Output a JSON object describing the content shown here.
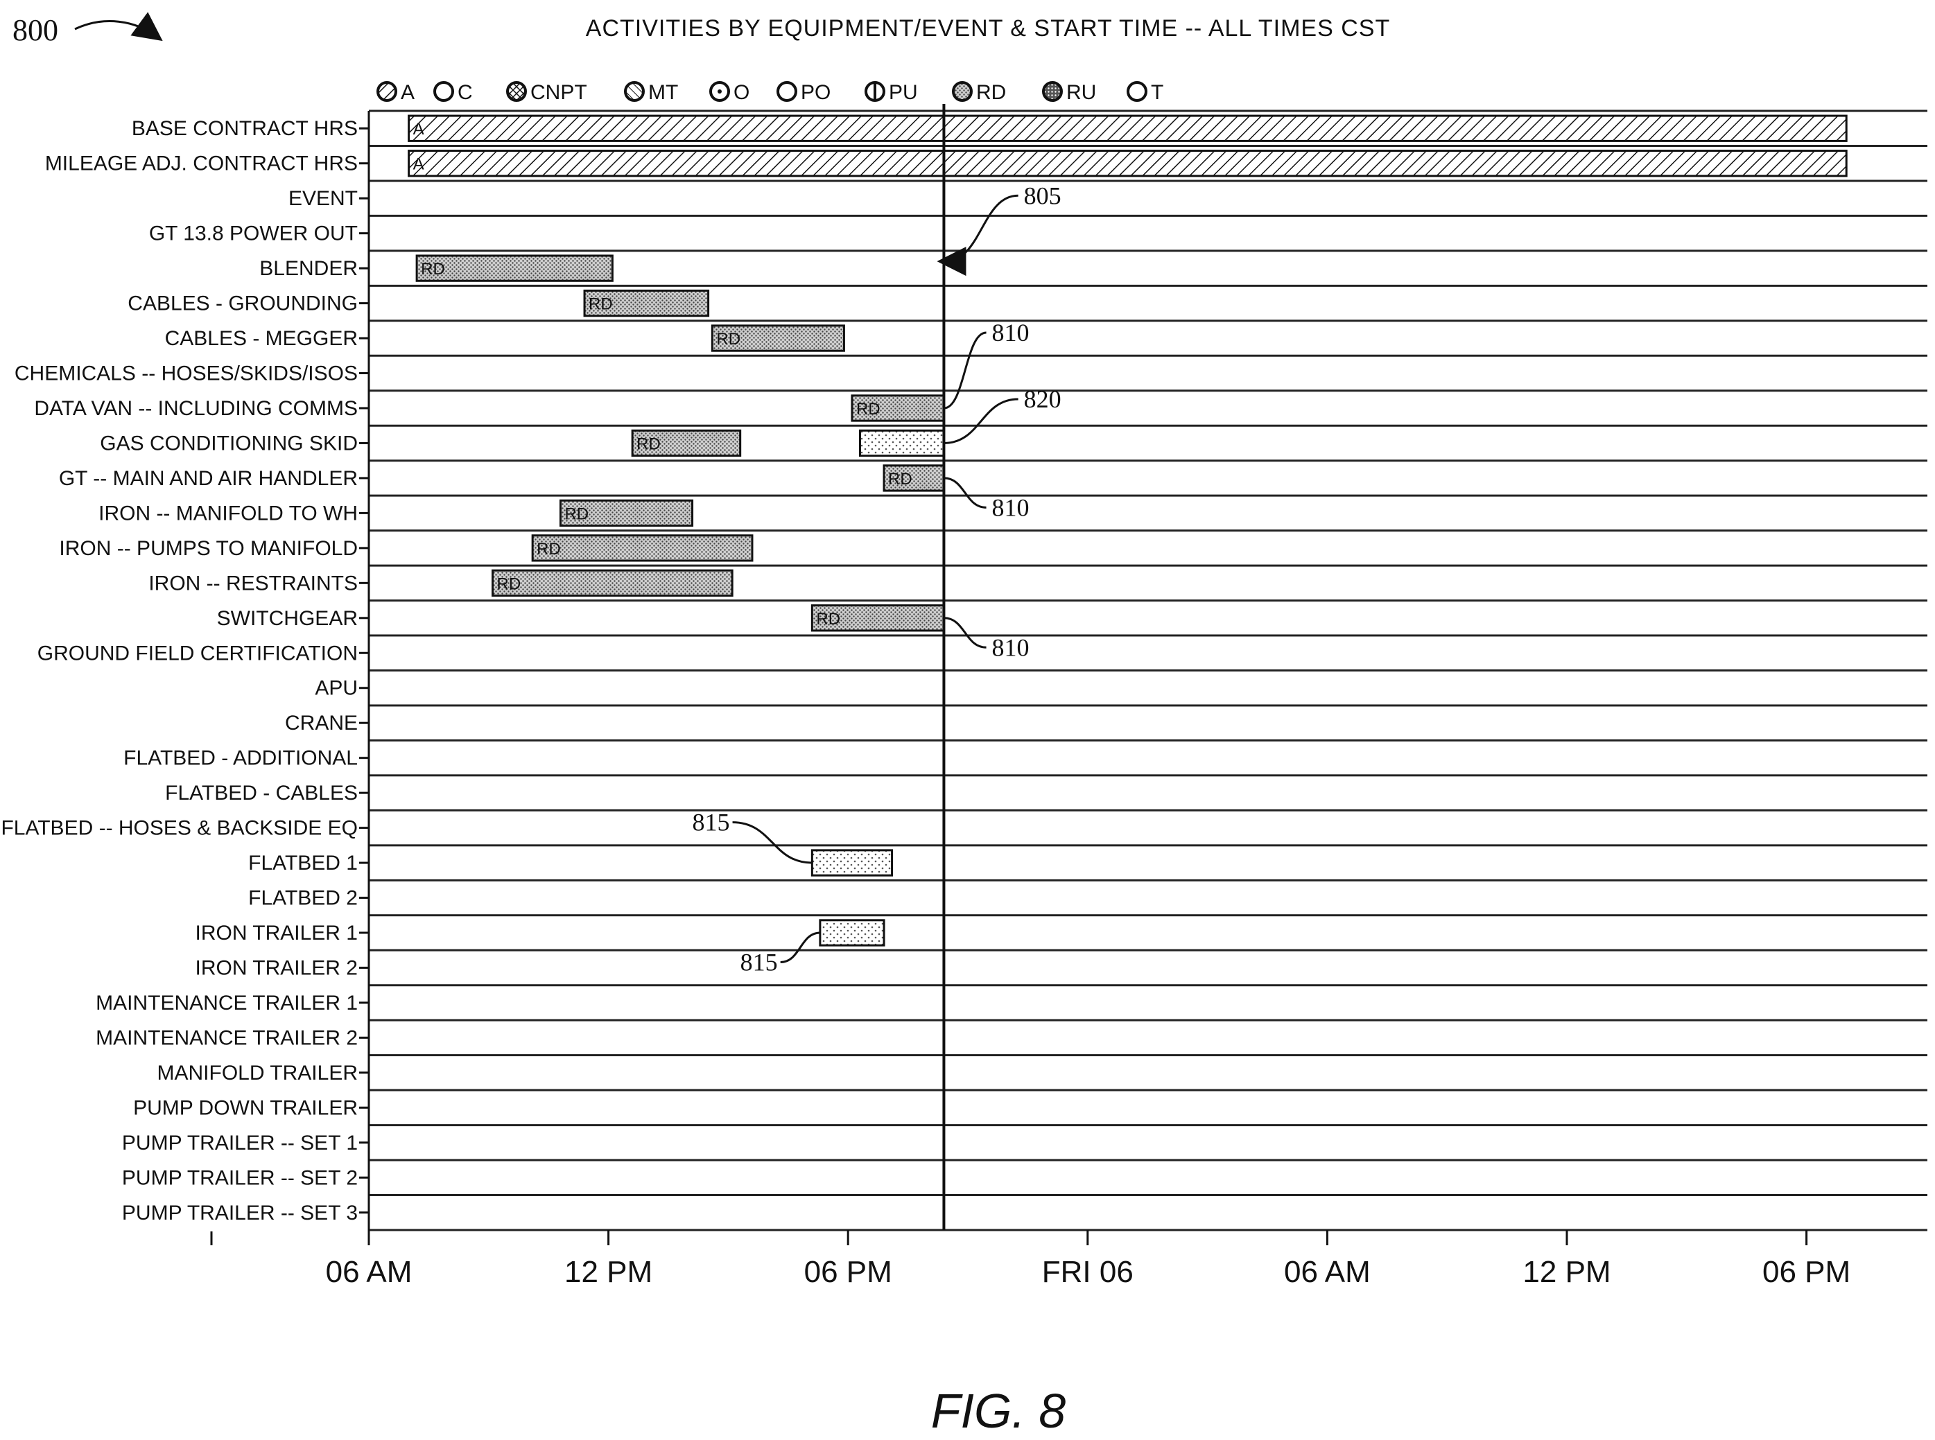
{
  "figure_number": "800",
  "figure_caption": "FIG. 8",
  "colors": {
    "ink": "#111111",
    "bar_fill": "#bdbdbd",
    "row_line": "#222222"
  },
  "chart_data": {
    "type": "gantt",
    "title": "ACTIVITIES BY EQUIPMENT/EVENT & START TIME -- ALL TIMES CST",
    "time_unit": "hours from Thu 06 AM",
    "xlim": [
      0,
      30
    ],
    "x_ticks": [
      {
        "value": 0,
        "label": "06 AM"
      },
      {
        "value": 6,
        "label": "12 PM"
      },
      {
        "value": 12,
        "label": "06 PM"
      },
      {
        "value": 18,
        "label": "FRI 06"
      },
      {
        "value": 24,
        "label": "06 AM"
      },
      {
        "value": 30,
        "label": "12 PM"
      },
      {
        "value": 36,
        "label": "06 PM"
      }
    ],
    "current_time": 14.4,
    "legend": [
      {
        "code": "A",
        "label": "A",
        "pattern": "hatch-fine"
      },
      {
        "code": "C",
        "label": "C",
        "pattern": "hollow"
      },
      {
        "code": "CNPT",
        "label": "CNPT",
        "pattern": "hatch-cross"
      },
      {
        "code": "MT",
        "label": "MT",
        "pattern": "hatch-diag"
      },
      {
        "code": "O",
        "label": "O",
        "pattern": "hollow-dot"
      },
      {
        "code": "PO",
        "label": "PO",
        "pattern": "hollow"
      },
      {
        "code": "PU",
        "label": "PU",
        "pattern": "split"
      },
      {
        "code": "RD",
        "label": "RD",
        "pattern": "stipple"
      },
      {
        "code": "RU",
        "label": "RU",
        "pattern": "solid-dots"
      },
      {
        "code": "T",
        "label": "T",
        "pattern": "hollow"
      }
    ],
    "rows": [
      "BASE CONTRACT HRS",
      "MILEAGE ADJ. CONTRACT HRS",
      "EVENT",
      "GT 13.8 POWER OUT",
      "BLENDER",
      "CABLES - GROUNDING",
      "CABLES - MEGGER",
      "CHEMICALS -- HOSES/SKIDS/ISOS",
      "DATA VAN -- INCLUDING COMMS",
      "GAS CONDITIONING SKID",
      "GT -- MAIN AND AIR HANDLER",
      "IRON -- MANIFOLD TO WH",
      "IRON -- PUMPS TO MANIFOLD",
      "IRON -- RESTRAINTS",
      "SWITCHGEAR",
      "GROUND FIELD CERTIFICATION",
      "APU",
      "CRANE",
      "FLATBED - ADDITIONAL",
      "FLATBED - CABLES",
      "FLATBED -- HOSES & BACKSIDE EQ",
      "FLATBED 1",
      "FLATBED 2",
      "IRON TRAILER 1",
      "IRON TRAILER 2",
      "MAINTENANCE TRAILER 1",
      "MAINTENANCE TRAILER 2",
      "MANIFOLD TRAILER",
      "PUMP DOWN TRAILER",
      "PUMP TRAILER -- SET 1",
      "PUMP TRAILER -- SET 2",
      "PUMP TRAILER -- SET 3"
    ],
    "bars": [
      {
        "row": 0,
        "start": 1.0,
        "end": 37.0,
        "label": "A",
        "pattern": "hatch-fine"
      },
      {
        "row": 1,
        "start": 1.0,
        "end": 37.0,
        "label": "A",
        "pattern": "hatch-fine"
      },
      {
        "row": 4,
        "start": 1.2,
        "end": 6.1,
        "label": "RD",
        "pattern": "stipple"
      },
      {
        "row": 5,
        "start": 5.4,
        "end": 8.5,
        "label": "RD",
        "pattern": "stipple"
      },
      {
        "row": 6,
        "start": 8.6,
        "end": 11.9,
        "label": "RD",
        "pattern": "stipple"
      },
      {
        "row": 8,
        "start": 12.1,
        "end": 14.4,
        "label": "RD",
        "pattern": "stipple"
      },
      {
        "row": 9,
        "start": 6.6,
        "end": 9.3,
        "label": "RD",
        "pattern": "stipple"
      },
      {
        "row": 9,
        "start": 12.3,
        "end": 14.4,
        "label": "",
        "pattern": "light-dots"
      },
      {
        "row": 10,
        "start": 12.9,
        "end": 14.4,
        "label": "RD",
        "pattern": "stipple"
      },
      {
        "row": 11,
        "start": 4.8,
        "end": 8.1,
        "label": "RD",
        "pattern": "stipple"
      },
      {
        "row": 12,
        "start": 4.1,
        "end": 9.6,
        "label": "RD",
        "pattern": "stipple"
      },
      {
        "row": 13,
        "start": 3.1,
        "end": 9.1,
        "label": "RD",
        "pattern": "stipple"
      },
      {
        "row": 14,
        "start": 11.1,
        "end": 14.4,
        "label": "RD",
        "pattern": "stipple"
      },
      {
        "row": 21,
        "start": 11.1,
        "end": 13.1,
        "label": "",
        "pattern": "light-dots"
      },
      {
        "row": 23,
        "start": 11.3,
        "end": 12.9,
        "label": "",
        "pattern": "light-dots"
      }
    ],
    "annotations": [
      {
        "label": "805",
        "target_row": 4,
        "target_x": 14.4,
        "text_row": 2.2,
        "text_x": 16.4,
        "kind": "arrow"
      },
      {
        "label": "810",
        "target_row": 8,
        "target_x": 14.4,
        "text_row": 6.0,
        "text_x": 15.6,
        "kind": "leader"
      },
      {
        "label": "820",
        "target_row": 9,
        "target_x": 14.4,
        "text_row": 7.9,
        "text_x": 16.4,
        "kind": "leader"
      },
      {
        "label": "810",
        "target_row": 10,
        "target_x": 14.4,
        "text_row": 11.0,
        "text_x": 15.6,
        "kind": "leader"
      },
      {
        "label": "810",
        "target_row": 14,
        "target_x": 14.4,
        "text_row": 15.0,
        "text_x": 15.6,
        "kind": "leader"
      },
      {
        "label": "815",
        "target_row": 21,
        "target_x": 11.1,
        "text_row": 20.0,
        "text_x": 8.1,
        "kind": "leader"
      },
      {
        "label": "815",
        "target_row": 23,
        "target_x": 11.3,
        "text_row": 24.0,
        "text_x": 9.3,
        "kind": "leader"
      }
    ]
  }
}
